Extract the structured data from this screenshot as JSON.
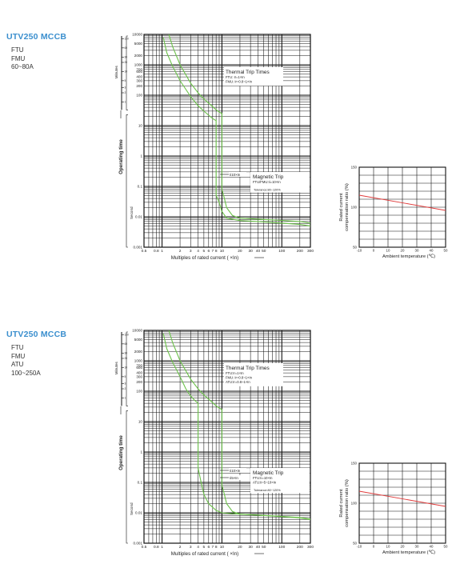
{
  "sections": [
    {
      "title": "UTV250 MCCB",
      "models": [
        "FTU",
        "FMU",
        "60~80A"
      ]
    },
    {
      "title": "UTV250 MCCB",
      "models": [
        "FTU",
        "FMU",
        "ATU",
        "100~250A"
      ]
    }
  ],
  "chart_data": [
    {
      "type": "line",
      "xscale": "log",
      "yscale": "log",
      "xlabel": "Multiples of rated current ( ×In)",
      "ylabel": "Operating time",
      "ylabel_sub_upper": "Minutes",
      "ylabel_sub_lower": "Second",
      "xlim": [
        0.5,
        300
      ],
      "ylim": [
        0.001,
        10000
      ],
      "x_ticks": [
        "0.5",
        "0.8",
        "1",
        "2",
        "3",
        "4",
        "5",
        "6",
        "7",
        "8",
        "10",
        "20",
        "30",
        "40",
        "50",
        "100",
        "200",
        "300"
      ],
      "y_ticks": [
        "0.001",
        "0.01",
        "0.1",
        "1",
        "10",
        "100",
        "200",
        "300",
        "400",
        "600",
        "700",
        "1000",
        "2000",
        "5000",
        "10000"
      ],
      "minutes_ticks": [
        "1",
        "2",
        "3",
        "5",
        "10",
        "20",
        "30",
        "60",
        "120"
      ],
      "thermal_label": "Thermal Trip Times",
      "thermal_lines": [
        "FTU: Ir=1×In",
        "FMU: Ir=0.8~1×In"
      ],
      "magnetic_label": "Magnetic Trip",
      "magnetic_lines": [
        "FTU/FMU:Ii=10×In"
      ],
      "tolerance": "Tolerance:80~120%",
      "callouts": [
        "Ii10×In"
      ],
      "series": [
        {
          "color": "#6cc24a",
          "x": [
            1.05,
            1.2,
            1.5,
            2,
            3,
            4,
            5,
            6,
            7,
            7.8,
            8,
            8,
            9,
            10,
            12,
            20,
            50,
            100,
            200,
            300
          ],
          "y": [
            8000,
            2500,
            900,
            300,
            90,
            45,
            30,
            22,
            17,
            15,
            15,
            0.05,
            0.03,
            0.015,
            0.009,
            0.0075,
            0.0068,
            0.0062,
            0.0056,
            0.005
          ]
        },
        {
          "color": "#6cc24a",
          "x": [
            1.3,
            1.5,
            2,
            3,
            4,
            5,
            6,
            7,
            8,
            9,
            10,
            10,
            11,
            12,
            15,
            20,
            50,
            100,
            200,
            300
          ],
          "y": [
            10000,
            4000,
            1000,
            250,
            120,
            75,
            55,
            42,
            33,
            28,
            25,
            0.08,
            0.04,
            0.02,
            0.011,
            0.009,
            0.0082,
            0.0076,
            0.007,
            0.0062
          ]
        }
      ]
    },
    {
      "type": "line",
      "xlabel": "Ambient temperature (℃)",
      "ylabel": "Rated current compensation ratio (%)",
      "xlim": [
        -10,
        50
      ],
      "ylim": [
        50,
        150
      ],
      "x_ticks": [
        "-10",
        "0",
        "10",
        "20",
        "30",
        "40",
        "50"
      ],
      "y_ticks": [
        "50",
        "100",
        "150"
      ],
      "series": [
        {
          "color": "#e03a3a",
          "x": [
            -10,
            50
          ],
          "y": [
            115,
            96
          ]
        }
      ]
    },
    {
      "type": "line",
      "xscale": "log",
      "yscale": "log",
      "xlabel": "Multiples of rated current ( ×In)",
      "ylabel": "Operating time",
      "ylabel_sub_upper": "Minutes",
      "ylabel_sub_lower": "Second",
      "xlim": [
        0.5,
        300
      ],
      "ylim": [
        0.001,
        10000
      ],
      "x_ticks": [
        "0.5",
        "0.8",
        "1",
        "2",
        "3",
        "4",
        "5",
        "6",
        "7",
        "8",
        "10",
        "20",
        "30",
        "40",
        "50",
        "100",
        "200",
        "300"
      ],
      "y_ticks": [
        "0.001",
        "0.01",
        "0.1",
        "1",
        "10",
        "100",
        "200",
        "300",
        "400",
        "600",
        "700",
        "1000",
        "2000",
        "5000",
        "10000"
      ],
      "minutes_ticks": [
        "1",
        "2",
        "3",
        "5",
        "10",
        "20",
        "30",
        "60",
        "120"
      ],
      "thermal_label": "Thermal Trip Times",
      "thermal_lines": [
        "FTU:Ir=1×In",
        "FMU: Ir=0.8~1×In",
        "ATU:Ir=0.8~1×In"
      ],
      "magnetic_label": "Magnetic Trip",
      "magnetic_lines": [
        "FTU:Ii=10×In",
        "ATU:Ii=5~10×In"
      ],
      "tolerance": "Tolerance:80~120%",
      "callouts": [
        "Ii10×In",
        "Ii5×In"
      ],
      "series": [
        {
          "color": "#6cc24a",
          "x": [
            1.05,
            1.2,
            1.5,
            2,
            2.5,
            3,
            3.5,
            4,
            4,
            4.5,
            5,
            6,
            8,
            10,
            20,
            50,
            100,
            200,
            300
          ],
          "y": [
            8000,
            2500,
            900,
            300,
            120,
            70,
            50,
            40,
            0.3,
            0.1,
            0.04,
            0.02,
            0.012,
            0.01,
            0.009,
            0.0082,
            0.0075,
            0.0068,
            0.006
          ]
        },
        {
          "color": "#6cc24a",
          "x": [
            1.3,
            1.5,
            2,
            3,
            4,
            5,
            6,
            7,
            8,
            9,
            10,
            10,
            11,
            12,
            15,
            20,
            50,
            100,
            200,
            300
          ],
          "y": [
            10000,
            4000,
            1000,
            250,
            120,
            75,
            55,
            42,
            33,
            28,
            25,
            0.08,
            0.04,
            0.02,
            0.011,
            0.009,
            0.0082,
            0.0076,
            0.007,
            0.0062
          ]
        }
      ]
    },
    {
      "type": "line",
      "xlabel": "Ambient temperature (℃)",
      "ylabel": "Rated current compensation ratio (%)",
      "xlim": [
        -10,
        50
      ],
      "ylim": [
        50,
        150
      ],
      "x_ticks": [
        "-10",
        "0",
        "10",
        "20",
        "30",
        "40",
        "50"
      ],
      "y_ticks": [
        "50",
        "100",
        "150"
      ],
      "series": [
        {
          "color": "#e03a3a",
          "x": [
            -10,
            50
          ],
          "y": [
            115,
            96
          ]
        }
      ]
    }
  ]
}
